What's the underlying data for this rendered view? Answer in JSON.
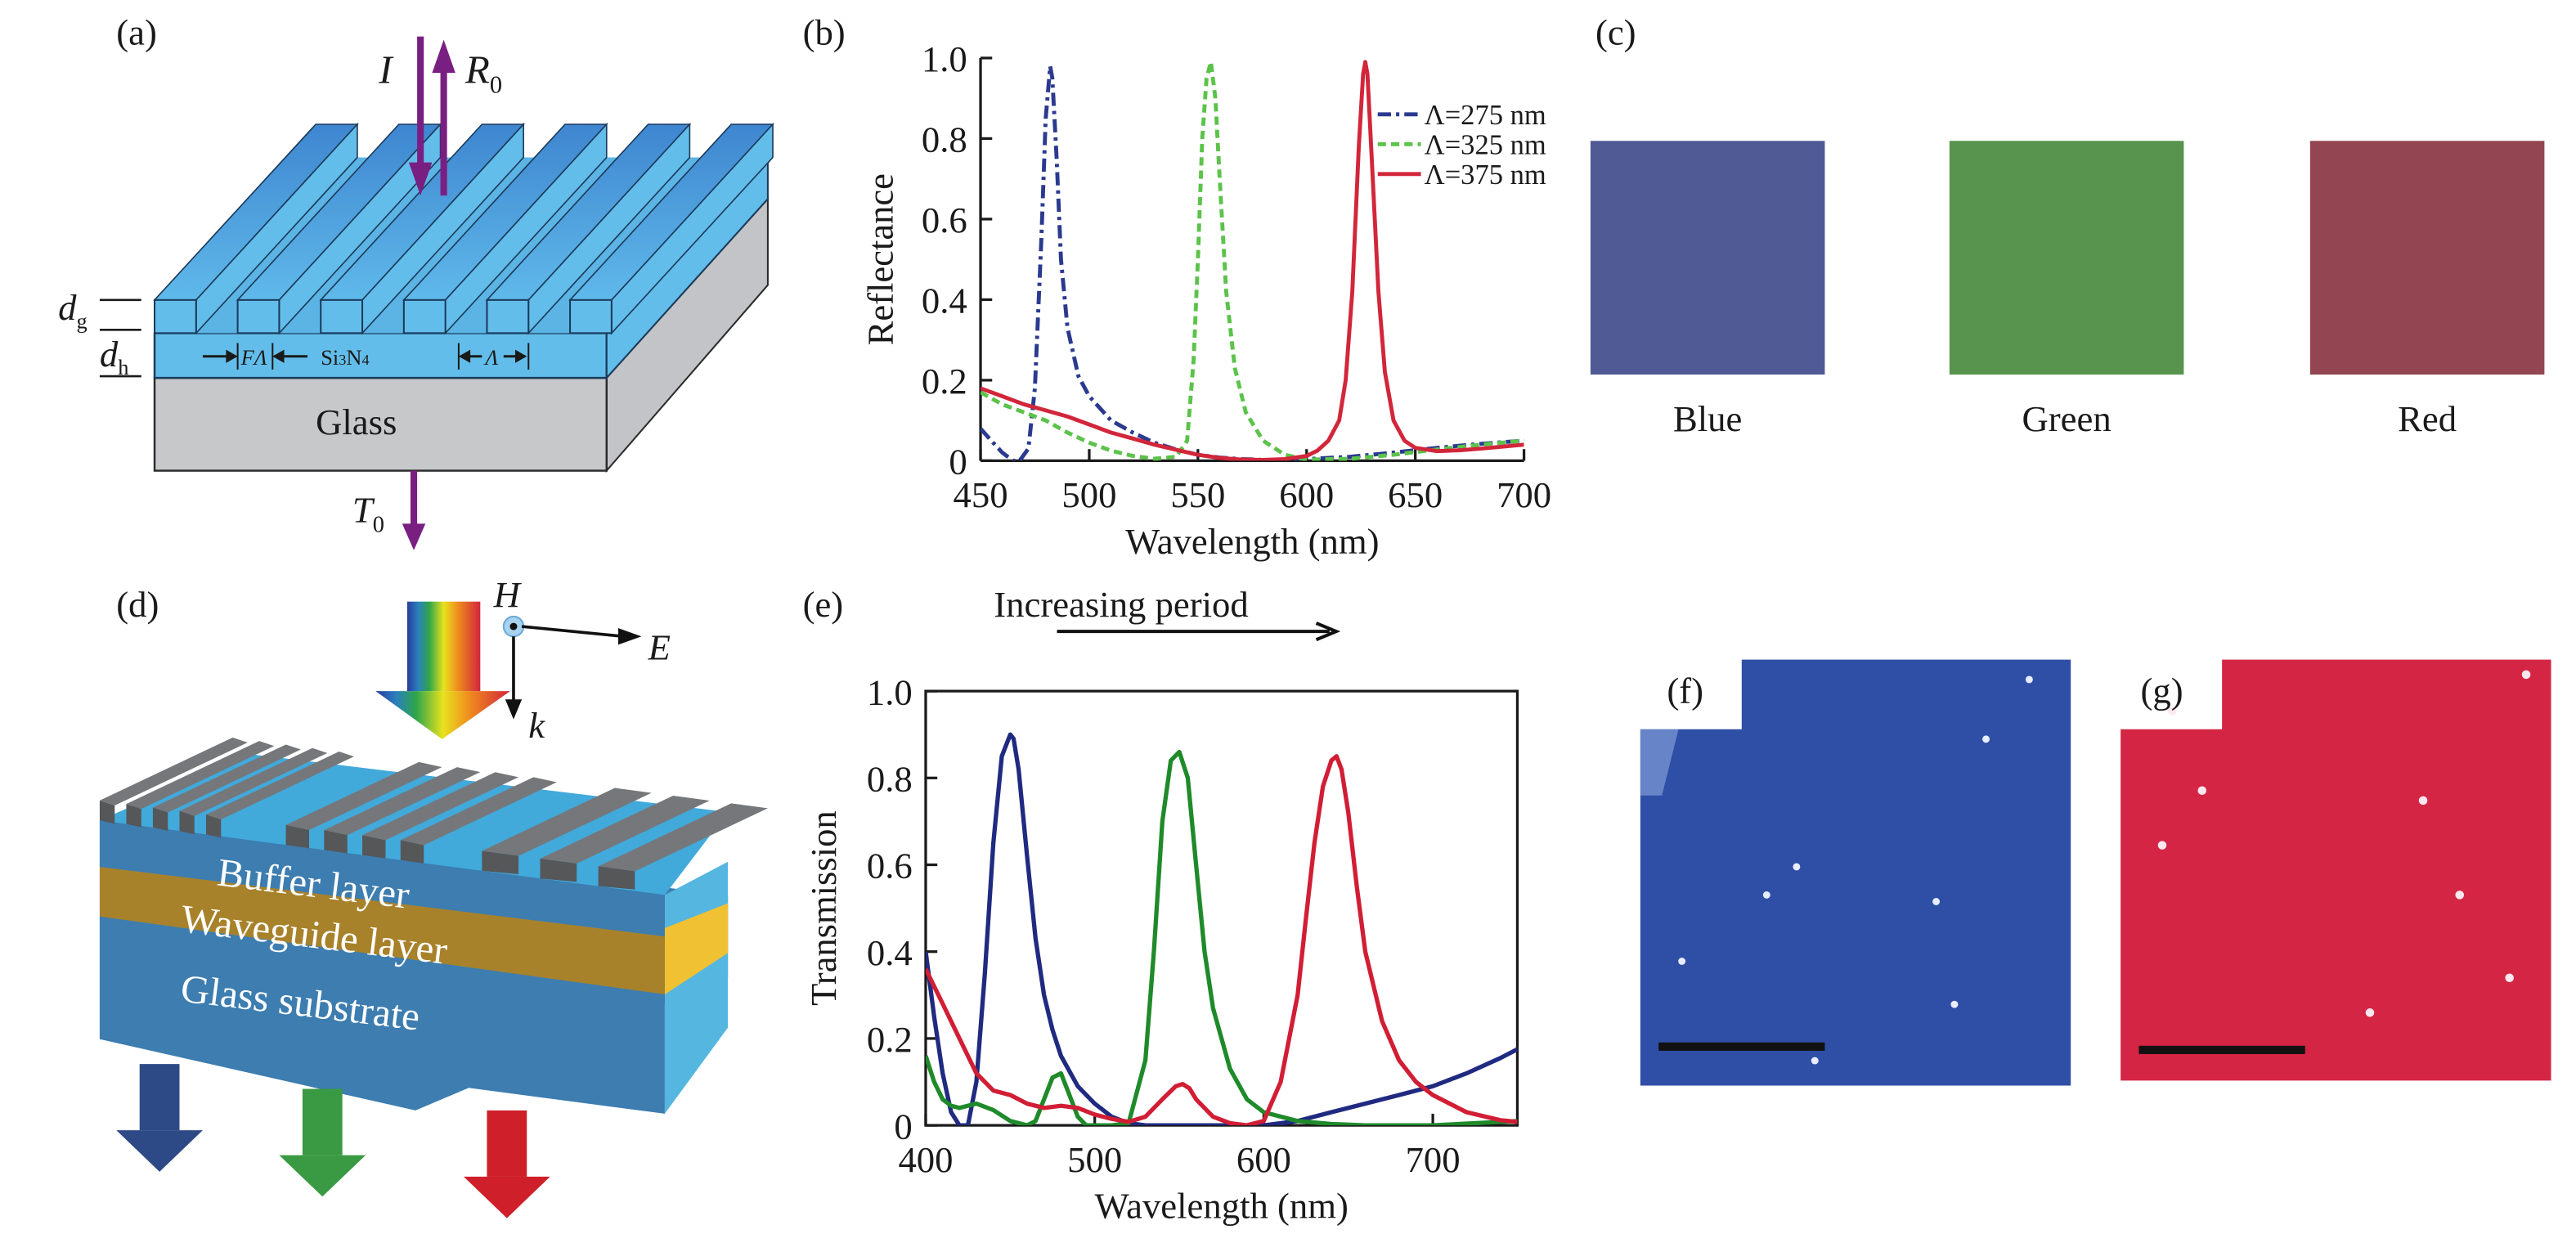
{
  "panels": {
    "a": {
      "label": "(a)",
      "incident": "I",
      "reflected": "R",
      "reflected_sub": "0",
      "transmitted": "T",
      "transmitted_sub": "0",
      "dg": "d",
      "dg_sub": "g",
      "dh": "d",
      "dh_sub": "h",
      "fill_factor": "FΛ",
      "period": "Λ",
      "material_base": "Si",
      "material_sub1": "3",
      "material_mid": "N",
      "material_sub2": "4",
      "substrate": "Glass",
      "colors": {
        "grating_top": "#3f8fd6",
        "grating_side": "#63bdea",
        "glass": "#c6c8ca",
        "arrow": "#7a1f82"
      }
    },
    "b": {
      "label": "(b)"
    },
    "c": {
      "label": "(c)",
      "swatches": [
        {
          "name": "Blue",
          "color": "#505b96"
        },
        {
          "name": "Green",
          "color": "#58944e"
        },
        {
          "name": "Red",
          "color": "#944552"
        }
      ]
    },
    "d": {
      "label": "(d)",
      "H": "H",
      "E": "E",
      "k": "k",
      "buffer": "Buffer layer",
      "waveguide": "Waveguide layer",
      "substrate": "Glass substrate",
      "colors": {
        "blue_layer": "#3d7db0",
        "blue_side": "#55b6e0",
        "waveguide": "#a8822b",
        "waveguide_side": "#f0c132",
        "grating": "#6b6d70",
        "out_blue": "#2e4a86",
        "out_green": "#3a9a43",
        "out_red": "#cf1f2a"
      }
    },
    "e": {
      "label": "(e)",
      "annotation": "Increasing period"
    },
    "f": {
      "label": "(f)",
      "color": "#2f4ea6"
    },
    "g": {
      "label": "(g)",
      "color": "#d42545"
    }
  },
  "chart_data": [
    {
      "id": "b",
      "type": "line",
      "title": "",
      "xlabel": "Wavelength (nm)",
      "ylabel": "Reflectance",
      "xlim": [
        450,
        700
      ],
      "ylim": [
        0,
        1.0
      ],
      "xticks": [
        "450",
        "500",
        "550",
        "600",
        "650",
        "700"
      ],
      "yticks": [
        "0",
        "0.2",
        "0.4",
        "0.6",
        "0.8",
        "1.0"
      ],
      "legend_position": "top-right",
      "grid": false,
      "series": [
        {
          "name": "Λ=275 nm",
          "color": "#2b3a8f",
          "dash": "dashdot",
          "x": [
            450,
            455,
            460,
            465,
            468,
            472,
            475,
            478,
            480,
            482,
            483,
            485,
            487,
            490,
            495,
            500,
            510,
            520,
            530,
            540,
            550,
            560,
            570,
            580,
            590,
            600,
            620,
            640,
            660,
            680,
            700
          ],
          "y": [
            0.08,
            0.05,
            0.02,
            0.0,
            0.0,
            0.03,
            0.18,
            0.55,
            0.85,
            0.98,
            0.95,
            0.75,
            0.5,
            0.33,
            0.21,
            0.16,
            0.1,
            0.07,
            0.045,
            0.028,
            0.015,
            0.008,
            0.004,
            0.002,
            0.002,
            0.004,
            0.01,
            0.02,
            0.032,
            0.042,
            0.05
          ]
        },
        {
          "name": "Λ=325 nm",
          "color": "#5cc34a",
          "dash": "dashed",
          "x": [
            450,
            460,
            470,
            480,
            490,
            500,
            510,
            520,
            530,
            540,
            545,
            548,
            550,
            552,
            554,
            556,
            558,
            560,
            563,
            567,
            572,
            580,
            590,
            600,
            620,
            640,
            660,
            680,
            700
          ],
          "y": [
            0.17,
            0.14,
            0.12,
            0.1,
            0.07,
            0.045,
            0.025,
            0.012,
            0.005,
            0.01,
            0.05,
            0.25,
            0.5,
            0.8,
            0.95,
            0.99,
            0.9,
            0.7,
            0.42,
            0.23,
            0.12,
            0.05,
            0.015,
            0.003,
            0.005,
            0.015,
            0.028,
            0.04,
            0.05
          ]
        },
        {
          "name": "Λ=375 nm",
          "color": "#d2263a",
          "dash": "solid",
          "x": [
            450,
            460,
            470,
            480,
            490,
            500,
            510,
            520,
            530,
            540,
            550,
            560,
            570,
            580,
            590,
            600,
            605,
            610,
            615,
            618,
            621,
            624,
            626,
            627,
            628,
            630,
            633,
            636,
            640,
            645,
            650,
            660,
            670,
            680,
            690,
            700
          ],
          "y": [
            0.18,
            0.16,
            0.14,
            0.125,
            0.11,
            0.09,
            0.07,
            0.055,
            0.04,
            0.027,
            0.015,
            0.007,
            0.003,
            0.002,
            0.004,
            0.012,
            0.025,
            0.05,
            0.1,
            0.2,
            0.42,
            0.78,
            0.96,
            0.99,
            0.96,
            0.75,
            0.42,
            0.22,
            0.1,
            0.05,
            0.032,
            0.024,
            0.026,
            0.03,
            0.035,
            0.04
          ]
        }
      ]
    },
    {
      "id": "e",
      "type": "line",
      "title": "",
      "xlabel": "Wavelength (nm)",
      "ylabel": "Transmission",
      "xlim": [
        400,
        750
      ],
      "ylim": [
        0,
        1.0
      ],
      "xticks": [
        "400",
        "500",
        "600",
        "700"
      ],
      "yticks": [
        "0",
        "0.2",
        "0.4",
        "0.6",
        "0.8",
        "1.0"
      ],
      "grid": false,
      "legend_position": "none",
      "series": [
        {
          "name": "blue",
          "color": "#1f2a80",
          "x": [
            400,
            405,
            410,
            415,
            420,
            425,
            430,
            435,
            440,
            445,
            450,
            452,
            455,
            460,
            465,
            470,
            475,
            480,
            490,
            500,
            510,
            520,
            530,
            540,
            560,
            580,
            600,
            620,
            640,
            660,
            680,
            700,
            720,
            740,
            750
          ],
          "y": [
            0.4,
            0.25,
            0.12,
            0.03,
            0.0,
            0.0,
            0.1,
            0.35,
            0.65,
            0.85,
            0.9,
            0.89,
            0.82,
            0.62,
            0.43,
            0.3,
            0.22,
            0.16,
            0.09,
            0.05,
            0.02,
            0.005,
            0.0,
            0.0,
            0.0,
            0.0,
            0.0,
            0.01,
            0.03,
            0.05,
            0.07,
            0.09,
            0.12,
            0.155,
            0.175
          ]
        },
        {
          "name": "green",
          "color": "#1f8a2a",
          "x": [
            400,
            405,
            410,
            415,
            420,
            430,
            440,
            450,
            460,
            465,
            470,
            475,
            480,
            485,
            490,
            495,
            500,
            510,
            520,
            530,
            535,
            540,
            545,
            550,
            555,
            560,
            565,
            570,
            580,
            590,
            600,
            620,
            640,
            660,
            700,
            750
          ],
          "y": [
            0.16,
            0.1,
            0.06,
            0.045,
            0.04,
            0.05,
            0.035,
            0.01,
            0.0,
            0.01,
            0.06,
            0.11,
            0.12,
            0.07,
            0.02,
            0.0,
            0.0,
            0.0,
            0.005,
            0.15,
            0.4,
            0.7,
            0.84,
            0.86,
            0.8,
            0.6,
            0.4,
            0.27,
            0.13,
            0.06,
            0.03,
            0.01,
            0.003,
            0.0,
            0.0,
            0.01
          ]
        },
        {
          "name": "red",
          "color": "#d11e35",
          "x": [
            400,
            410,
            420,
            430,
            440,
            450,
            460,
            470,
            480,
            490,
            500,
            510,
            520,
            530,
            540,
            548,
            552,
            556,
            560,
            570,
            580,
            590,
            600,
            610,
            620,
            625,
            630,
            635,
            640,
            643,
            646,
            650,
            655,
            660,
            670,
            680,
            690,
            700,
            720,
            740,
            750
          ],
          "y": [
            0.36,
            0.28,
            0.2,
            0.12,
            0.08,
            0.07,
            0.05,
            0.04,
            0.045,
            0.04,
            0.025,
            0.015,
            0.008,
            0.02,
            0.06,
            0.09,
            0.095,
            0.085,
            0.06,
            0.02,
            0.005,
            0.0,
            0.01,
            0.1,
            0.3,
            0.48,
            0.65,
            0.78,
            0.84,
            0.85,
            0.82,
            0.72,
            0.55,
            0.4,
            0.24,
            0.15,
            0.1,
            0.07,
            0.03,
            0.012,
            0.008
          ]
        }
      ]
    }
  ]
}
